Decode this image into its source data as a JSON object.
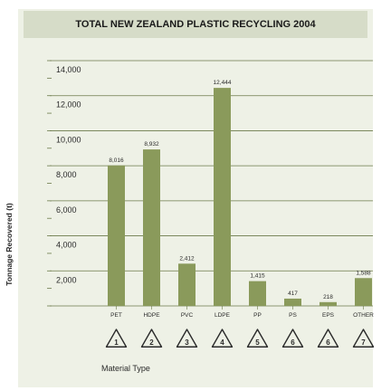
{
  "chart_data": {
    "type": "bar",
    "title": "TOTAL NEW ZEALAND PLASTIC RECYCLING 2004",
    "xlabel": "Material Type",
    "ylabel": "Tonnage Recovered (t)",
    "ylim": [
      0,
      14000
    ],
    "yticks": [
      "2,000",
      "4,000",
      "6,000",
      "8,000",
      "10,000",
      "12,000",
      "14,000"
    ],
    "categories": [
      "PET",
      "HDPE",
      "PVC",
      "LDPE",
      "PP",
      "PS",
      "EPS",
      "OTHER"
    ],
    "recycling_codes": [
      "1",
      "2",
      "3",
      "4",
      "5",
      "6",
      "6",
      "7"
    ],
    "values": [
      8016,
      8932,
      2412,
      12444,
      1415,
      417,
      218,
      1588
    ],
    "value_labels": [
      "8,016",
      "8,932",
      "2,412",
      "12,444",
      "1,415",
      "417",
      "218",
      "1,588"
    ],
    "bar_color": "#8a9a5b",
    "grid": true
  }
}
